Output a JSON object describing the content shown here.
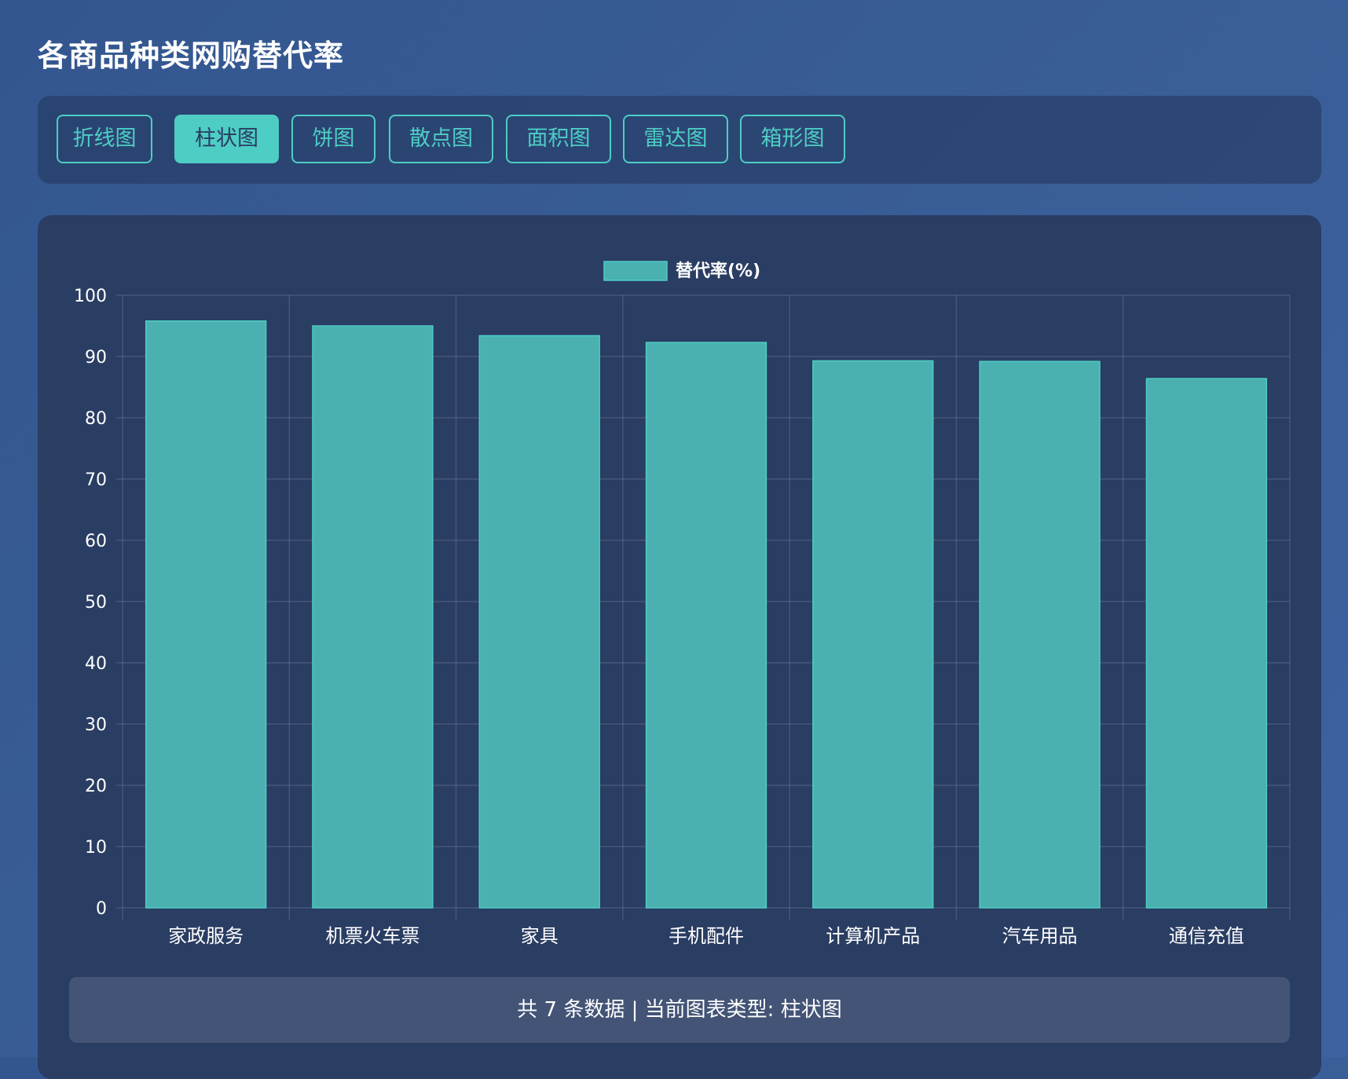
{
  "page": {
    "title": "各商品种类网购替代率"
  },
  "tabs": [
    {
      "label": "折线图",
      "active": false
    },
    {
      "label": "柱状图",
      "active": true
    },
    {
      "label": "饼图",
      "active": false
    },
    {
      "label": "散点图",
      "active": false
    },
    {
      "label": "面积图",
      "active": false
    },
    {
      "label": "雷达图",
      "active": false
    },
    {
      "label": "箱形图",
      "active": false
    }
  ],
  "colors": {
    "accent": "#4ecdc4",
    "bar_fill": "#4ab1b0",
    "card_bg": "#2a3d63"
  },
  "footer": {
    "count_prefix": "共 7 条数据",
    "separator": " | ",
    "type_text": "当前图表类型: 柱状图"
  },
  "chart_data": {
    "type": "bar",
    "title": "",
    "xlabel": "",
    "ylabel": "",
    "legend": "top-center",
    "grid": true,
    "categories": [
      "家政服务",
      "机票火车票",
      "家具",
      "手机配件",
      "计算机产品",
      "汽车用品",
      "通信充值"
    ],
    "series": [
      {
        "name": "替代率(%)",
        "values": [
          95.8,
          95.0,
          93.4,
          92.3,
          89.3,
          89.2,
          86.4
        ]
      }
    ],
    "ylim": [
      0,
      100
    ],
    "yticks": [
      "0",
      "10",
      "20",
      "30",
      "40",
      "50",
      "60",
      "70",
      "80",
      "90",
      "100"
    ]
  }
}
